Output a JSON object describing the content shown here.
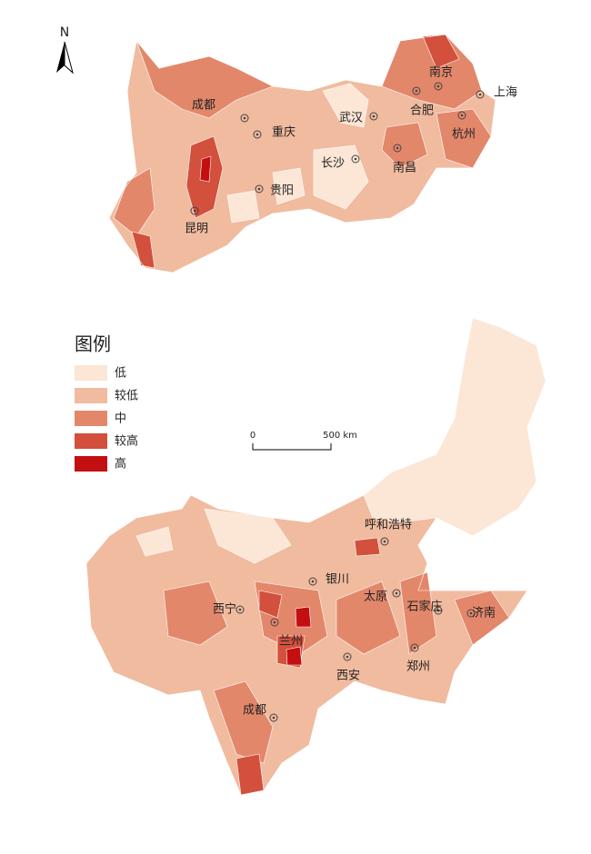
{
  "north": "N",
  "legend": {
    "title": "图例",
    "items": [
      {
        "label": "低",
        "color": "#fce6d5"
      },
      {
        "label": "较低",
        "color": "#f0bb9f"
      },
      {
        "label": "中",
        "color": "#e3876b"
      },
      {
        "label": "较高",
        "color": "#d2503c"
      },
      {
        "label": "高",
        "color": "#c40f12"
      }
    ]
  },
  "scale_bar": {
    "labels": [
      "0",
      "500 km"
    ]
  },
  "upper_map": {
    "cities": [
      "成都",
      "重庆",
      "武汉",
      "合肥",
      "南京",
      "上海",
      "杭州",
      "长沙",
      "南昌",
      "贵阳",
      "昆明"
    ]
  },
  "lower_map": {
    "cities": [
      "呼和浩特",
      "银川",
      "太原",
      "石家庄",
      "济南",
      "西宁",
      "兰州",
      "西安",
      "郑州",
      "成都"
    ]
  }
}
